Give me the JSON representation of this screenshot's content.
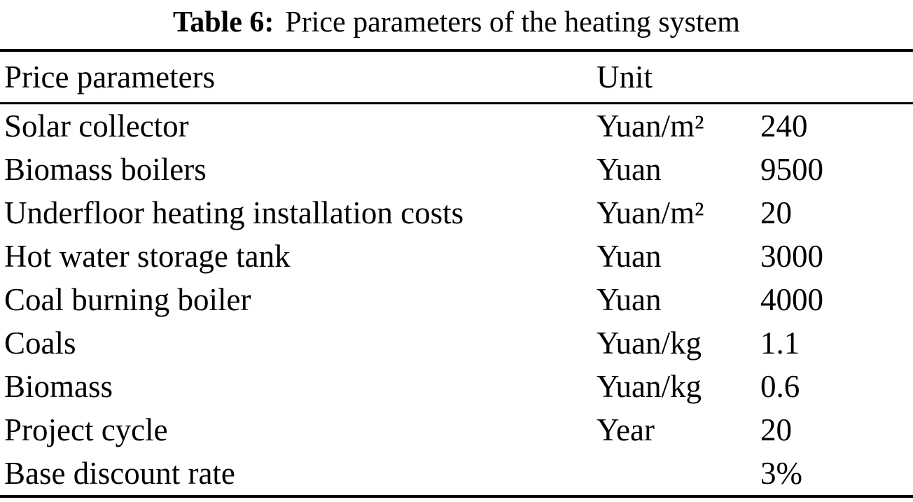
{
  "table": {
    "caption_label": "Table 6:",
    "caption_title": "Price parameters of the heating system",
    "columns": [
      "Price parameters",
      "Unit",
      ""
    ],
    "rows": [
      {
        "parameter": "Solar collector",
        "unit": "Yuan/m²",
        "value": "240"
      },
      {
        "parameter": "Biomass boilers",
        "unit": "Yuan",
        "value": "9500"
      },
      {
        "parameter": "Underfloor heating installation costs",
        "unit": "Yuan/m²",
        "value": "20"
      },
      {
        "parameter": "Hot water storage tank",
        "unit": "Yuan",
        "value": "3000"
      },
      {
        "parameter": "Coal burning boiler",
        "unit": "Yuan",
        "value": "4000"
      },
      {
        "parameter": "Coals",
        "unit": "Yuan/kg",
        "value": "1.1"
      },
      {
        "parameter": "Biomass",
        "unit": "Yuan/kg",
        "value": "0.6"
      },
      {
        "parameter": "Project cycle",
        "unit": "Year",
        "value": "20"
      },
      {
        "parameter": "Base discount rate",
        "unit": "",
        "value": "3%"
      }
    ]
  }
}
